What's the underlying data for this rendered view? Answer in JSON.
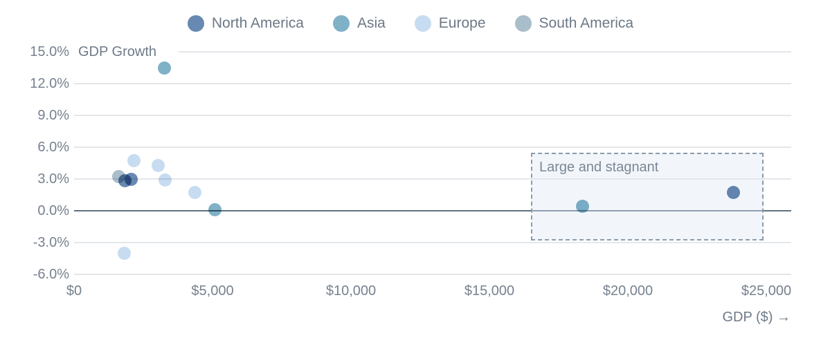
{
  "legend": {
    "items": [
      {
        "label": "North America",
        "color": "#6789b2"
      },
      {
        "label": "Asia",
        "color": "#7fb1c7"
      },
      {
        "label": "Europe",
        "color": "#c7dcf1"
      },
      {
        "label": "South America",
        "color": "#a9bdca"
      }
    ]
  },
  "chart_data": {
    "type": "scatter",
    "title": "",
    "xlabel": "GDP ($) →",
    "ylabel": "GDP Growth",
    "xlim": [
      0,
      25000
    ],
    "ylim": [
      -6,
      15
    ],
    "grid": "horizontal",
    "zero_line": true,
    "legend_position": "top-center",
    "x_ticks": {
      "values": [
        0,
        5000,
        10000,
        15000,
        20000,
        25000
      ],
      "labels": [
        "$0",
        "$5,000",
        "$10,000",
        "$15,000",
        "$20,000",
        "$25,000"
      ]
    },
    "y_ticks": {
      "values": [
        15,
        12,
        9,
        6,
        3,
        0,
        -3,
        -6
      ],
      "labels": [
        "15.0%",
        "12.0%",
        "9.0%",
        "6.0%",
        "3.0%",
        "0.0%",
        "-3.0%",
        "-6.0%"
      ]
    },
    "series": [
      {
        "name": "North America",
        "color": "#6789b2",
        "points": [
          {
            "x": 1825,
            "y": 2.85
          },
          {
            "x": 2050,
            "y": 2.95
          },
          {
            "x": 23800,
            "y": 1.7
          }
        ]
      },
      {
        "name": "Asia",
        "color": "#7fb1c7",
        "points": [
          {
            "x": 3250,
            "y": 13.5
          },
          {
            "x": 5075,
            "y": 0.1
          },
          {
            "x": 18350,
            "y": 0.4
          }
        ]
      },
      {
        "name": "Europe",
        "color": "#c7dcf1",
        "points": [
          {
            "x": 2150,
            "y": 4.7
          },
          {
            "x": 3025,
            "y": 4.3
          },
          {
            "x": 3275,
            "y": 2.9
          },
          {
            "x": 4350,
            "y": 1.7
          },
          {
            "x": 1800,
            "y": -4.0
          }
        ]
      },
      {
        "name": "South America",
        "color": "#a9bdca",
        "points": [
          {
            "x": 1600,
            "y": 3.2
          }
        ]
      }
    ],
    "annotation": {
      "label": "Large and stagnant",
      "x_range": [
        16500,
        24900
      ],
      "y_range": [
        -2.8,
        5.5
      ]
    }
  }
}
